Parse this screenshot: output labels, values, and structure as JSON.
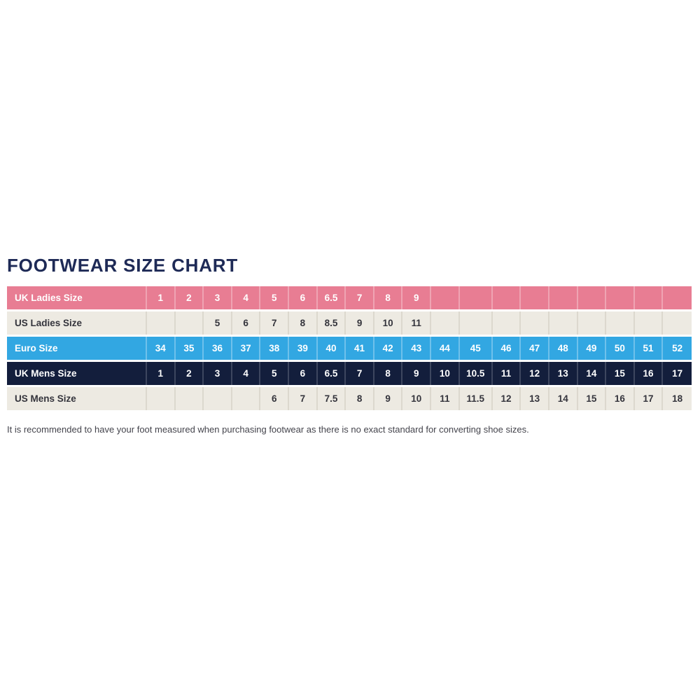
{
  "page": {
    "title": "FOOTWEAR SIZE CHART",
    "footnote": "It is recommended to have your foot measured when purchasing footwear as there is no exact standard for converting shoe sizes."
  },
  "colors": {
    "title_navy": "#1e2a56",
    "row_pink": "#e87d93",
    "row_cream": "#edeae2",
    "row_blue": "#32a7e2",
    "row_navy": "#131e3c",
    "cream_text": "#34343c",
    "white_text": "#ffffff",
    "footnote_text": "#44444c"
  },
  "chart_data": {
    "type": "table",
    "title": "FOOTWEAR SIZE CHART",
    "data_columns": 19,
    "rows": [
      {
        "label": "UK Ladies Size",
        "style": "pink",
        "values": [
          "1",
          "2",
          "3",
          "4",
          "5",
          "6",
          "6.5",
          "7",
          "8",
          "9",
          "",
          "",
          "",
          "",
          "",
          "",
          "",
          "",
          ""
        ]
      },
      {
        "label": "US Ladies Size",
        "style": "cream",
        "values": [
          "",
          "",
          "5",
          "6",
          "7",
          "8",
          "8.5",
          "9",
          "10",
          "11",
          "",
          "",
          "",
          "",
          "",
          "",
          "",
          "",
          ""
        ]
      },
      {
        "label": "Euro Size",
        "style": "blue",
        "values": [
          "34",
          "35",
          "36",
          "37",
          "38",
          "39",
          "40",
          "41",
          "42",
          "43",
          "44",
          "45",
          "46",
          "47",
          "48",
          "49",
          "50",
          "51",
          "52"
        ]
      },
      {
        "label": "UK Mens Size",
        "style": "navy",
        "values": [
          "1",
          "2",
          "3",
          "4",
          "5",
          "6",
          "6.5",
          "7",
          "8",
          "9",
          "10",
          "10.5",
          "11",
          "12",
          "13",
          "14",
          "15",
          "16",
          "17"
        ]
      },
      {
        "label": "US Mens Size",
        "style": "cream",
        "values": [
          "",
          "",
          "",
          "",
          "6",
          "7",
          "7.5",
          "8",
          "9",
          "10",
          "11",
          "11.5",
          "12",
          "13",
          "14",
          "15",
          "16",
          "17",
          "18"
        ]
      }
    ]
  }
}
